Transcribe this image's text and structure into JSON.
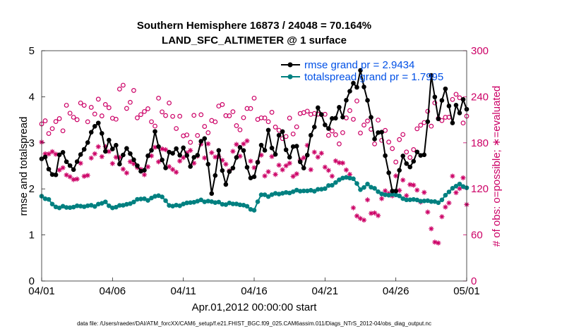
{
  "chart_data": {
    "type": "line",
    "title": "Southern Hemisphere 16873 / 24048 = 70.164%",
    "subtitle": "LAND_SFC_ALTIMETER @ 1 surface",
    "xlabel": "Apr.01,2012 00:00:00 start",
    "ylabel": "rmse and totalspread",
    "y2label": "# of obs: o=possible; ∗=evaluated",
    "footnote": "data file: /Users/raeder/DAI/ATM_forcXX/CAM6_setup/f.e21.FHIST_BGC.f09_025.CAM6assim.011/Diags_NTrS_2012-04/obs_diag_output.nc",
    "xlim": [
      0,
      30
    ],
    "ylim": [
      0,
      5
    ],
    "y2lim": [
      0,
      300
    ],
    "x_ticks": [
      {
        "value": 0,
        "label": "04/01"
      },
      {
        "value": 5,
        "label": "04/06"
      },
      {
        "value": 10,
        "label": "04/11"
      },
      {
        "value": 15,
        "label": "04/16"
      },
      {
        "value": 20,
        "label": "04/21"
      },
      {
        "value": 25,
        "label": "04/26"
      },
      {
        "value": 30,
        "label": "05/01"
      }
    ],
    "y_ticks": [
      "0",
      "1",
      "2",
      "3",
      "4",
      "5"
    ],
    "y2_ticks": [
      "0",
      "60",
      "120",
      "180",
      "240",
      "300"
    ],
    "legend_position": "top-right",
    "series": [
      {
        "name": "rmse grand pr = 2.9434",
        "axis": "left",
        "color": "#000000",
        "marker": "filled-circle",
        "anchors": [
          [
            0,
            2.6
          ],
          [
            1,
            2.4
          ],
          [
            1.5,
            2.9
          ],
          [
            2,
            2.4
          ],
          [
            3,
            2.7
          ],
          [
            3.5,
            3.3
          ],
          [
            4,
            3.45
          ],
          [
            4.5,
            2.9
          ],
          [
            5,
            3.0
          ],
          [
            5.5,
            2.7
          ],
          [
            6,
            2.9
          ],
          [
            6.5,
            2.6
          ],
          [
            7,
            2.3
          ],
          [
            7.5,
            2.6
          ],
          [
            8,
            3.4
          ],
          [
            8.5,
            2.5
          ],
          [
            9,
            2.7
          ],
          [
            10,
            2.8
          ],
          [
            10.5,
            2.45
          ],
          [
            11,
            2.8
          ],
          [
            11.5,
            3.0
          ],
          [
            12,
            1.85
          ],
          [
            12.5,
            2.75
          ],
          [
            13,
            2.2
          ],
          [
            14,
            2.9
          ],
          [
            14.5,
            2.5
          ],
          [
            15,
            2.2
          ],
          [
            15.5,
            2.8
          ],
          [
            16,
            3.2
          ],
          [
            16.5,
            2.8
          ],
          [
            17,
            3.3
          ],
          [
            17.5,
            2.7
          ],
          [
            18,
            2.9
          ],
          [
            18.5,
            2.6
          ],
          [
            19,
            3.0
          ],
          [
            19.5,
            3.7
          ],
          [
            20,
            3.4
          ],
          [
            21,
            3.6
          ],
          [
            21.5,
            3.8
          ],
          [
            22,
            4.25
          ],
          [
            22.5,
            4.45
          ],
          [
            23,
            3.9
          ],
          [
            23.5,
            3.1
          ],
          [
            24,
            3.2
          ],
          [
            24.5,
            2.2
          ],
          [
            25,
            2.0
          ],
          [
            25.5,
            2.7
          ],
          [
            26,
            2.55
          ],
          [
            27,
            2.9
          ],
          [
            27.5,
            4.3
          ],
          [
            28,
            3.4
          ],
          [
            28.5,
            4.2
          ],
          [
            29,
            3.5
          ],
          [
            29.5,
            3.8
          ],
          [
            30,
            3.9
          ]
        ],
        "summary": {
          "mean": 2.94
        }
      },
      {
        "name": "totalspread grand pr = 1.7995",
        "axis": "left",
        "color": "#008080",
        "marker": "filled-circle",
        "anchors": [
          [
            0,
            1.85
          ],
          [
            0.5,
            1.75
          ],
          [
            1,
            1.6
          ],
          [
            2,
            1.6
          ],
          [
            3,
            1.62
          ],
          [
            4,
            1.65
          ],
          [
            4.5,
            1.7
          ],
          [
            5,
            1.6
          ],
          [
            6,
            1.65
          ],
          [
            7,
            1.8
          ],
          [
            7.5,
            1.75
          ],
          [
            8,
            1.85
          ],
          [
            8.5,
            1.85
          ],
          [
            9,
            1.65
          ],
          [
            10,
            1.65
          ],
          [
            11,
            1.75
          ],
          [
            12,
            1.72
          ],
          [
            13,
            1.68
          ],
          [
            14,
            1.65
          ],
          [
            15,
            1.55
          ],
          [
            15.5,
            1.85
          ],
          [
            16,
            1.85
          ],
          [
            16.5,
            1.9
          ],
          [
            17,
            1.92
          ],
          [
            18,
            1.95
          ],
          [
            19,
            1.95
          ],
          [
            20,
            2.0
          ],
          [
            21,
            2.2
          ],
          [
            21.5,
            2.25
          ],
          [
            22,
            2.2
          ],
          [
            22.5,
            2.0
          ],
          [
            23,
            2.1
          ],
          [
            23.5,
            2.0
          ],
          [
            24,
            1.9
          ],
          [
            25,
            1.85
          ],
          [
            26,
            1.75
          ],
          [
            27,
            1.75
          ],
          [
            28,
            1.7
          ],
          [
            29,
            2.0
          ],
          [
            29.5,
            2.1
          ],
          [
            30,
            2.0
          ]
        ],
        "summary": {
          "mean": 1.8
        }
      },
      {
        "name": "possible",
        "axis": "right",
        "color": "#cc0066",
        "marker": "open-circle",
        "anchors": [
          [
            0,
            205
          ],
          [
            2,
            215
          ],
          [
            4,
            230
          ],
          [
            5,
            225
          ],
          [
            6,
            240
          ],
          [
            7,
            220
          ],
          [
            8,
            215
          ],
          [
            9,
            230
          ],
          [
            10,
            195
          ],
          [
            11,
            200
          ],
          [
            12,
            205
          ],
          [
            13,
            230
          ],
          [
            14,
            215
          ],
          [
            15,
            220
          ],
          [
            16,
            210
          ],
          [
            17,
            195
          ],
          [
            18,
            210
          ],
          [
            19,
            200
          ],
          [
            20,
            215
          ],
          [
            21,
            190
          ],
          [
            22,
            220
          ],
          [
            23,
            205
          ],
          [
            24,
            185
          ],
          [
            25,
            170
          ],
          [
            26,
            180
          ],
          [
            27,
            200
          ],
          [
            28,
            225
          ],
          [
            29,
            235
          ],
          [
            30,
            215
          ]
        ]
      },
      {
        "name": "evaluated",
        "axis": "right",
        "color": "#cc0066",
        "marker": "asterisk",
        "anchors": [
          [
            0,
            165
          ],
          [
            1.5,
            150
          ],
          [
            3,
            135
          ],
          [
            4.5,
            170
          ],
          [
            5.5,
            170
          ],
          [
            6.5,
            140
          ],
          [
            7.5,
            160
          ],
          [
            8.5,
            165
          ],
          [
            9.5,
            150
          ],
          [
            10.5,
            165
          ],
          [
            11.5,
            165
          ],
          [
            12.5,
            155
          ],
          [
            13.5,
            160
          ],
          [
            14.5,
            170
          ],
          [
            15.5,
            150
          ],
          [
            16.5,
            150
          ],
          [
            17.5,
            140
          ],
          [
            18.5,
            160
          ],
          [
            19.5,
            160
          ],
          [
            20.5,
            150
          ],
          [
            21.5,
            155
          ],
          [
            22,
            100
          ],
          [
            22.5,
            80
          ],
          [
            23,
            105
          ],
          [
            24,
            95
          ],
          [
            25,
            125
          ],
          [
            26,
            115
          ],
          [
            27,
            105
          ],
          [
            27.5,
            70
          ],
          [
            28,
            60
          ],
          [
            28.5,
            110
          ],
          [
            29,
            125
          ],
          [
            30,
            115
          ]
        ]
      }
    ]
  }
}
